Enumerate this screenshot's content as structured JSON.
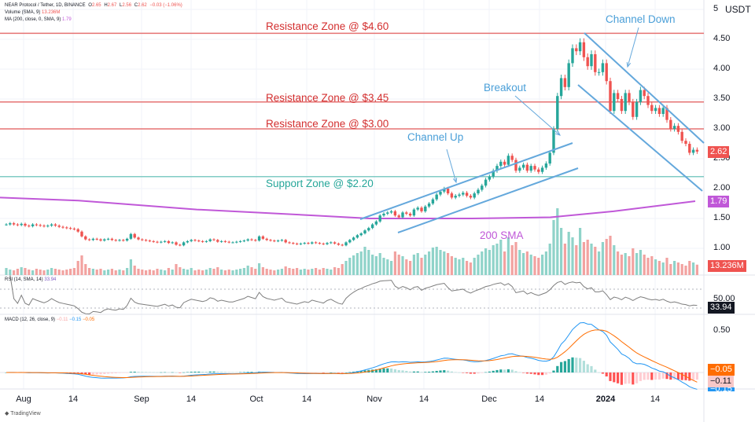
{
  "header": {
    "symbol": "NEAR Protocol / Tether, 1D, BINANCE",
    "o_label": "O",
    "o": "2.65",
    "h_label": "H",
    "h": "2.67",
    "l_label": "L",
    "l": "2.56",
    "c_label": "C",
    "c": "2.62",
    "change": "−0.03 (−1.06%)",
    "volume_label": "Volume (SMA, 9)",
    "volume_value": "13.236M",
    "ma_label": "MA (200, close, 0, SMA, 9)",
    "ma_value": "1.79",
    "rsi_label": "RSI (14, SMA, 14)",
    "rsi_value": "33.94",
    "macd_label": "MACD (12, 26, close, 9)",
    "macd_values": [
      "−0.11",
      "−0.15",
      "−0.05"
    ]
  },
  "axis": {
    "currency": "USDT",
    "price_ticks": [
      "5",
      "4.50",
      "4.00",
      "3.50",
      "3.00",
      "2.50",
      "2.00",
      "1.50",
      "1.00"
    ],
    "rsi_tick": "50.00",
    "macd_tick": "0.50",
    "time_labels": [
      "Aug",
      "14",
      "Sep",
      "14",
      "Oct",
      "14",
      "Nov",
      "14",
      "Dec",
      "14",
      "2024",
      "14"
    ]
  },
  "badges": {
    "price": "2.62",
    "ma": "1.79",
    "volume": "13.236M",
    "rsi": "33.94",
    "macd_signal": "−0.05",
    "macd_hist": "−0.11",
    "macd_line": "−0.15"
  },
  "annotations": {
    "r460": "Resistance Zone @ $4.60",
    "r345": "Resistance Zone @ $3.45",
    "r300": "Resistance Zone @ $3.00",
    "s220": "Support Zone @ $2.20",
    "channel_up": "Channel Up",
    "breakout": "Breakout",
    "channel_down": "Channel Down",
    "sma": "200 SMA"
  },
  "colors": {
    "up": "#26a69a",
    "down": "#ef5350",
    "resistance": "#e57373",
    "support": "#80cbc4",
    "trend": "#64a8dc",
    "sma": "#c058d8",
    "rsi": "#7e7e7e",
    "macd": "#2196f3",
    "signal": "#ff6d00"
  },
  "logo": "TradingView",
  "chart_data": {
    "type": "candlestick",
    "start_date": "2023-07-27",
    "closes": [
      1.4,
      1.42,
      1.4,
      1.39,
      1.41,
      1.38,
      1.37,
      1.4,
      1.39,
      1.38,
      1.37,
      1.38,
      1.4,
      1.38,
      1.36,
      1.35,
      1.34,
      1.33,
      1.32,
      1.28,
      1.2,
      1.15,
      1.14,
      1.16,
      1.15,
      1.13,
      1.15,
      1.16,
      1.14,
      1.13,
      1.14,
      1.13,
      1.16,
      1.24,
      1.18,
      1.15,
      1.14,
      1.13,
      1.12,
      1.11,
      1.1,
      1.11,
      1.12,
      1.09,
      1.1,
      1.06,
      1.05,
      1.1,
      1.12,
      1.14,
      1.13,
      1.12,
      1.11,
      1.12,
      1.15,
      1.14,
      1.11,
      1.12,
      1.11,
      1.1,
      1.1,
      1.11,
      1.12,
      1.13,
      1.15,
      1.14,
      1.13,
      1.2,
      1.16,
      1.14,
      1.13,
      1.12,
      1.13,
      1.14,
      1.1,
      1.09,
      1.08,
      1.07,
      1.08,
      1.09,
      1.08,
      1.1,
      1.09,
      1.08,
      1.07,
      1.09,
      1.1,
      1.08,
      1.06,
      1.05,
      1.1,
      1.14,
      1.18,
      1.22,
      1.25,
      1.3,
      1.34,
      1.4,
      1.45,
      1.55,
      1.58,
      1.6,
      1.62,
      1.55,
      1.52,
      1.6,
      1.58,
      1.55,
      1.65,
      1.68,
      1.62,
      1.7,
      1.75,
      1.82,
      1.9,
      1.95,
      2.0,
      1.92,
      1.85,
      1.88,
      1.9,
      1.93,
      1.88,
      1.85,
      1.92,
      1.98,
      2.05,
      2.15,
      2.2,
      2.3,
      2.38,
      2.45,
      2.4,
      2.55,
      2.48,
      2.3,
      2.35,
      2.4,
      2.3,
      2.38,
      2.32,
      2.28,
      2.35,
      2.42,
      2.6,
      3.0,
      3.55,
      3.85,
      3.7,
      4.1,
      4.35,
      4.3,
      4.45,
      4.2,
      4.05,
      4.25,
      3.95,
      3.95,
      4.1,
      3.8,
      3.3,
      3.6,
      3.5,
      3.3,
      3.6,
      3.45,
      3.2,
      3.45,
      3.65,
      3.55,
      3.4,
      3.3,
      3.35,
      3.25,
      3.35,
      3.15,
      3.0,
      3.05,
      2.95,
      2.8,
      2.75,
      2.6,
      2.65,
      2.62
    ],
    "volumes_m": [
      9,
      7,
      6,
      8,
      10,
      9,
      7,
      6,
      8,
      7,
      6,
      7,
      9,
      8,
      7,
      6,
      7,
      8,
      9,
      18,
      25,
      14,
      9,
      8,
      7,
      8,
      6,
      7,
      8,
      6,
      7,
      6,
      9,
      20,
      12,
      8,
      7,
      6,
      7,
      6,
      8,
      7,
      6,
      9,
      7,
      14,
      10,
      8,
      7,
      9,
      6,
      7,
      6,
      7,
      9,
      8,
      10,
      7,
      6,
      7,
      6,
      7,
      8,
      9,
      12,
      10,
      8,
      15,
      10,
      8,
      7,
      6,
      7,
      8,
      11,
      9,
      8,
      9,
      7,
      8,
      7,
      8,
      9,
      7,
      9,
      8,
      7,
      10,
      9,
      14,
      18,
      22,
      25,
      28,
      30,
      36,
      32,
      26,
      24,
      28,
      22,
      20,
      18,
      30,
      26,
      24,
      20,
      18,
      26,
      28,
      22,
      26,
      30,
      35,
      36,
      32,
      30,
      28,
      24,
      22,
      20,
      22,
      18,
      16,
      22,
      26,
      30,
      34,
      32,
      38,
      40,
      45,
      30,
      48,
      38,
      42,
      32,
      28,
      30,
      26,
      24,
      22,
      26,
      30,
      40,
      70,
      85,
      60,
      40,
      55,
      48,
      38,
      60,
      42,
      45,
      40,
      36,
      30,
      42,
      46,
      50,
      38,
      30,
      26,
      28,
      24,
      34,
      28,
      32,
      26,
      22,
      24,
      20,
      18,
      16,
      22,
      14,
      18,
      16,
      14,
      12,
      18,
      16,
      13.236
    ],
    "sma200": {
      "label": "200 SMA",
      "last": 1.79
    },
    "price_range": [
      0.9,
      5.0
    ],
    "grid": true
  }
}
